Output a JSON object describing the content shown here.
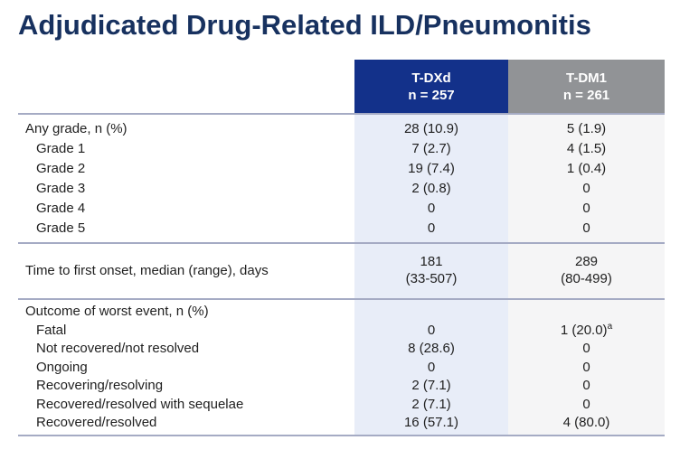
{
  "title": "Adjudicated Drug-Related ILD/Pneumonitis",
  "colors": {
    "title_navy": "#17315f",
    "tdxd_header_bg": "#13318a",
    "tdm1_header_bg": "#919396",
    "tdxd_column_bg": "#e8edf8",
    "tdm1_column_bg": "#f5f5f6",
    "divider": "#a5abc4"
  },
  "table": {
    "columns": [
      {
        "id": "tdxd",
        "label": "T-DXd",
        "sublabel": "n = 257"
      },
      {
        "id": "tdm1",
        "label": "T-DM1",
        "sublabel": "n = 261"
      }
    ],
    "sections": [
      {
        "name": "grades",
        "rows": [
          {
            "label": "Any grade, n (%)",
            "tdxd": "28 (10.9)",
            "tdm1": "5 (1.9)"
          },
          {
            "label": "Grade 1",
            "tdxd": "7 (2.7)",
            "tdm1": "4 (1.5)"
          },
          {
            "label": "Grade 2",
            "tdxd": "19 (7.4)",
            "tdm1": "1 (0.4)"
          },
          {
            "label": "Grade 3",
            "tdxd": "2 (0.8)",
            "tdm1": "0"
          },
          {
            "label": "Grade 4",
            "tdxd": "0",
            "tdm1": "0"
          },
          {
            "label": "Grade 5",
            "tdxd": "0",
            "tdm1": "0"
          }
        ]
      },
      {
        "name": "onset",
        "rows": [
          {
            "label": "Time to first onset, median (range), days",
            "tdxd_line1": "181",
            "tdxd_line2": "(33-507)",
            "tdm1_line1": "289",
            "tdm1_line2": "(80-499)"
          }
        ]
      },
      {
        "name": "outcome",
        "rows": [
          {
            "label": "Outcome of worst event, n (%)",
            "tdxd": "",
            "tdm1": ""
          },
          {
            "label": "Fatal",
            "tdxd": "0",
            "tdm1": "1 (20.0)",
            "tdm1_sup": "a"
          },
          {
            "label": "Not recovered/not resolved",
            "tdxd": "8 (28.6)",
            "tdm1": "0"
          },
          {
            "label": "Ongoing",
            "tdxd": "0",
            "tdm1": "0"
          },
          {
            "label": "Recovering/resolving",
            "tdxd": "2 (7.1)",
            "tdm1": "0"
          },
          {
            "label": "Recovered/resolved with sequelae",
            "tdxd": "2 (7.1)",
            "tdm1": "0"
          },
          {
            "label": "Recovered/resolved",
            "tdxd": "16 (57.1)",
            "tdm1": "4 (80.0)"
          }
        ]
      }
    ]
  }
}
